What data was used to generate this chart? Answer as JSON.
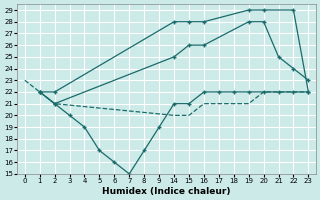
{
  "xlabel": "Humidex (Indice chaleur)",
  "bg_color": "#cceae8",
  "grid_color": "#ffffff",
  "line_color": "#1a6b6b",
  "xtick_labels": [
    "0",
    "1",
    "2",
    "3",
    "4",
    "5",
    "6",
    "7",
    "8",
    "9",
    "14",
    "15",
    "16",
    "17",
    "18",
    "19",
    "20",
    "21",
    "22",
    "23"
  ],
  "xtick_vals": [
    0,
    1,
    2,
    3,
    4,
    5,
    6,
    7,
    8,
    9,
    10,
    11,
    12,
    13,
    14,
    15,
    16,
    17,
    18,
    19
  ],
  "yticks": [
    15,
    16,
    17,
    18,
    19,
    20,
    21,
    22,
    23,
    24,
    25,
    26,
    27,
    28,
    29
  ],
  "ylim": [
    15,
    29.5
  ],
  "series": [
    {
      "xidx": [
        1,
        2,
        10,
        11,
        12,
        15,
        16,
        18,
        19
      ],
      "y": [
        22,
        22,
        28,
        28,
        28,
        29,
        29,
        29,
        22
      ],
      "marker": true,
      "dashed": false
    },
    {
      "xidx": [
        1,
        2,
        10,
        11,
        12,
        15,
        16,
        17,
        18,
        19
      ],
      "y": [
        22,
        21,
        25,
        26,
        26,
        28,
        28,
        25,
        24,
        23
      ],
      "marker": true,
      "dashed": false
    },
    {
      "xidx": [
        1,
        2,
        3,
        4,
        5,
        6,
        7,
        8,
        9,
        10,
        11,
        12,
        13,
        14,
        15,
        16,
        17,
        18,
        19
      ],
      "y": [
        22,
        21,
        20,
        19,
        17,
        16,
        15,
        17,
        19,
        21,
        21,
        22,
        22,
        22,
        22,
        22,
        22,
        22,
        22
      ],
      "marker": true,
      "dashed": false
    },
    {
      "xidx": [
        0,
        1,
        2,
        10,
        11,
        12,
        13,
        14,
        15,
        16,
        17,
        18,
        19
      ],
      "y": [
        23,
        22,
        21,
        20,
        20,
        21,
        21,
        21,
        21,
        22,
        22,
        22,
        22
      ],
      "marker": false,
      "dashed": true
    }
  ]
}
